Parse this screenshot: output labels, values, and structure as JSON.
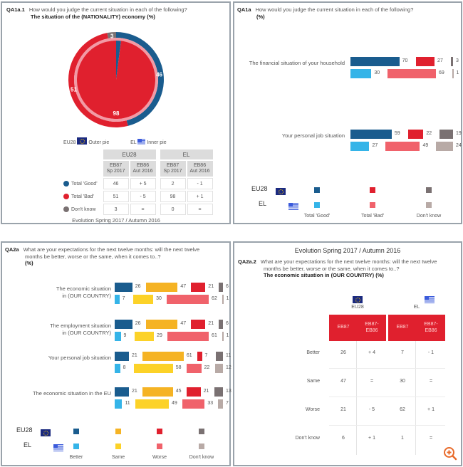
{
  "panel1": {
    "code": "QA1a.1",
    "question": "How would you judge the current situation in each of the following?",
    "subtitle": "The situation of the (NATIONALITY) economy  (%)",
    "legend": {
      "eu_label": "EU28",
      "outer": "Outer pie",
      "el_label": "EL",
      "inner": "Inner pie"
    },
    "table": {
      "groups": [
        "EU28",
        "EL"
      ],
      "subheads": [
        [
          "EB87",
          "Sp 2017"
        ],
        [
          "EB86",
          "Aut 2016"
        ],
        [
          "EB87",
          "Sp 2017"
        ],
        [
          "EB86",
          "Aut 2016"
        ]
      ],
      "rows": [
        {
          "label": "Total 'Good'",
          "color": "#1a5c8e",
          "values": [
            "46",
            "+ 5",
            "2",
            "- 1"
          ]
        },
        {
          "label": "Total 'Bad'",
          "color": "#e0202e",
          "values": [
            "51",
            "- 5",
            "98",
            "+ 1"
          ]
        },
        {
          "label": "Don't know",
          "color": "#7a7172",
          "values": [
            "3",
            "=",
            "0",
            "="
          ]
        }
      ]
    },
    "footer": "Evolution Spring 2017 /  Autumn 2016"
  },
  "panel2": {
    "code": "QA1a",
    "question": "How would you judge the current situation in each of the following?",
    "subtitle": "(%)",
    "legend": {
      "eu_label": "EU28",
      "el_label": "EL",
      "categories": [
        "Total 'Good'",
        "Total 'Bad'",
        "Don't know"
      ]
    }
  },
  "panel3": {
    "code": "QA2a",
    "question_line1": "What are your expectations for the next twelve months: will the next twelve",
    "question_line2": "months be better, worse or the same, when it comes to..?",
    "subtitle": "(%)",
    "legend": {
      "eu_label": "EU28",
      "el_label": "EL",
      "categories": [
        "Better",
        "Same",
        "Worse",
        "Don't know"
      ]
    }
  },
  "panel4": {
    "title": "Evolution Spring 2017 / Autumn 2016",
    "code": "QA2a.2",
    "question_line1": "What are your expectations for the next twelve months: will the next twelve",
    "question_line2": "months be better, worse or the same, when it comes to..?",
    "subtitle": "The economic situation in (OUR COUNTRY)  (%)",
    "groups": [
      "EU28",
      "EL"
    ],
    "heads": [
      "EB87",
      "EB87-EB86",
      "EB87",
      "EB87-EB86"
    ],
    "rows": [
      {
        "label": "Better",
        "values": [
          "26",
          "+ 4",
          "7",
          "- 1"
        ]
      },
      {
        "label": "Same",
        "values": [
          "47",
          "=",
          "30",
          "="
        ]
      },
      {
        "label": "Worse",
        "values": [
          "21",
          "- 5",
          "62",
          "+ 1"
        ]
      },
      {
        "label": "Don't know",
        "values": [
          "6",
          "+ 1",
          "1",
          "="
        ]
      }
    ],
    "header_color": "#e0202e"
  },
  "chart_data": [
    {
      "type": "pie",
      "title": "The situation of the (NATIONALITY) economy (%)",
      "series": [
        {
          "name": "EU28 (outer pie)",
          "labels": [
            "Total 'Good'",
            "Total 'Bad'",
            "Don't know"
          ],
          "values": [
            46,
            51,
            3
          ],
          "colors": [
            "#1a5c8e",
            "#e0202e",
            "#7a7172"
          ]
        },
        {
          "name": "EL (inner pie)",
          "labels": [
            "Total 'Good'",
            "Total 'Bad'",
            "Don't know"
          ],
          "values": [
            2,
            98,
            0
          ],
          "colors": [
            "#1a5c8e",
            "#e0202e",
            "#7a7172"
          ]
        }
      ],
      "visible_labels": {
        "outer": [
          "46",
          "51",
          "3"
        ],
        "inner": [
          "98"
        ]
      }
    },
    {
      "type": "bar",
      "title": "How would you judge the current situation in each of the following? (%)",
      "categories": [
        "The financial situation of your household",
        "Your personal job situation"
      ],
      "series": [
        {
          "name": "EU28 Total 'Good'",
          "values": [
            70,
            59
          ],
          "color": "#1a5c8e"
        },
        {
          "name": "EU28 Total 'Bad'",
          "values": [
            27,
            22
          ],
          "color": "#e0202e"
        },
        {
          "name": "EU28 Don't know",
          "values": [
            3,
            19
          ],
          "color": "#7a7172"
        },
        {
          "name": "EL Total 'Good'",
          "values": [
            30,
            27
          ],
          "color": "#35b4e8"
        },
        {
          "name": "EL Total 'Bad'",
          "values": [
            69,
            49
          ],
          "color": "#f0626b"
        },
        {
          "name": "EL Don't know",
          "values": [
            1,
            24
          ],
          "color": "#b8aaa6"
        }
      ],
      "legend": "bottom"
    },
    {
      "type": "bar",
      "title": "What are your expectations for the next twelve months (%)",
      "categories": [
        "The economic situation in (OUR COUNTRY)",
        "The employment situation in (OUR COUNTRY)",
        "Your personal job situation",
        "The economic situation in the EU"
      ],
      "series": [
        {
          "name": "EU28 Better",
          "values": [
            26,
            26,
            21,
            21
          ],
          "color": "#1a5c8e"
        },
        {
          "name": "EU28 Same",
          "values": [
            47,
            47,
            61,
            45
          ],
          "color": "#f5b324"
        },
        {
          "name": "EU28 Worse",
          "values": [
            21,
            21,
            7,
            21
          ],
          "color": "#e0202e"
        },
        {
          "name": "EU28 Don't know",
          "values": [
            6,
            6,
            11,
            13
          ],
          "color": "#7a7172"
        },
        {
          "name": "EL Better",
          "values": [
            7,
            9,
            8,
            11
          ],
          "color": "#35b4e8"
        },
        {
          "name": "EL Same",
          "values": [
            30,
            29,
            58,
            49
          ],
          "color": "#fcd228"
        },
        {
          "name": "EL Worse",
          "values": [
            62,
            61,
            22,
            33
          ],
          "color": "#f0626b"
        },
        {
          "name": "EL Don't know",
          "values": [
            1,
            1,
            12,
            7
          ],
          "color": "#b8aaa6"
        }
      ],
      "legend": "bottom"
    }
  ]
}
